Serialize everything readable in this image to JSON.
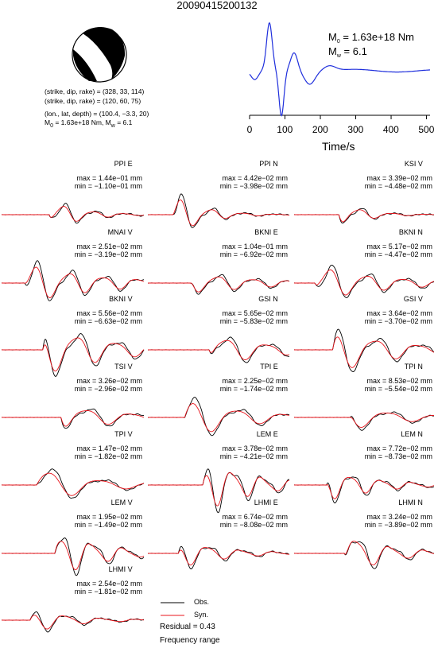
{
  "event_id": "20090415200132",
  "solutions": [
    "(strike, dip, rake) = (328, 33, 114)",
    "(strike, dip, rake) = (120, 60, 75)"
  ],
  "location": "(lon., lat, depth) = (100.4, −3.3, 20)",
  "moment_line": {
    "m": "M",
    "sub0": "0",
    "val": " = 1.63e+18 Nm, M",
    "subw": "w",
    "mw": " = 6.1"
  },
  "stf": {
    "m0_label": "M",
    "m0_sub": "0",
    "m0_value": " = 1.63e+18 Nm",
    "mw_label": "M",
    "mw_sub": "w",
    "mw_value": " = 6.1",
    "xlabel": "Time/s",
    "ticks": [
      "0",
      "100",
      "200",
      "300",
      "400",
      "500"
    ]
  },
  "panels": [
    {
      "name": "PPI E",
      "max": "max = 1.44e−01 mm",
      "min": "min = −1.10e−01 mm"
    },
    {
      "name": "PPI N",
      "max": "max = 4.42e−02 mm",
      "min": "min = −3.98e−02 mm"
    },
    {
      "name": "KSI V",
      "max": "max = 3.39e−02 mm",
      "min": "min = −4.48e−02 mm"
    },
    {
      "name": "MNAI V",
      "max": "max = 2.51e−02 mm",
      "min": "min = −3.19e−02 mm"
    },
    {
      "name": "BKNI E",
      "max": "max = 1.04e−01 mm",
      "min": "min = −6.92e−02 mm"
    },
    {
      "name": "BKNI N",
      "max": "max = 5.17e−02 mm",
      "min": "min = −4.47e−02 mm"
    },
    {
      "name": "BKNI V",
      "max": "max = 5.56e−02 mm",
      "min": "min = −6.63e−02 mm"
    },
    {
      "name": "GSI N",
      "max": "max = 5.65e−02 mm",
      "min": "min = −5.83e−02 mm"
    },
    {
      "name": "GSI V",
      "max": "max = 3.64e−02 mm",
      "min": "min = −3.70e−02 mm"
    },
    {
      "name": "TSI V",
      "max": "max = 3.26e−02 mm",
      "min": "min = −2.96e−02 mm"
    },
    {
      "name": "TPI E",
      "max": "max = 2.25e−02 mm",
      "min": "min = −1.74e−02 mm"
    },
    {
      "name": "TPI N",
      "max": "max = 8.53e−02 mm",
      "min": "min = −5.54e−02 mm"
    },
    {
      "name": "TPI V",
      "max": "max = 1.47e−02 mm",
      "min": "min = −1.82e−02 mm"
    },
    {
      "name": "LEM E",
      "max": "max = 3.78e−02 mm",
      "min": "min = −4.21e−02 mm"
    },
    {
      "name": "LEM N",
      "max": "max = 7.72e−02 mm",
      "min": "min = −8.73e−02 mm"
    },
    {
      "name": "LEM V",
      "max": "max = 1.95e−02 mm",
      "min": "min = −1.49e−02 mm"
    },
    {
      "name": "LHMI E",
      "max": "max = 6.74e−02 mm",
      "min": "min = −8.08e−02 mm"
    },
    {
      "name": "LHMI N",
      "max": "max = 3.24e−02 mm",
      "min": "min = −3.89e−02 mm"
    },
    {
      "name": "LHMI V",
      "max": "max = 2.54e−02 mm",
      "min": "min = −1.81e−02 mm"
    }
  ],
  "legend": {
    "obs": "Obs.",
    "syn": "Syn.",
    "obs_color": "#000000",
    "syn_color": "#e8141b"
  },
  "residual": "Residual = 0.43",
  "freq": "Frequency range",
  "stf_color": "#1f2fdc"
}
